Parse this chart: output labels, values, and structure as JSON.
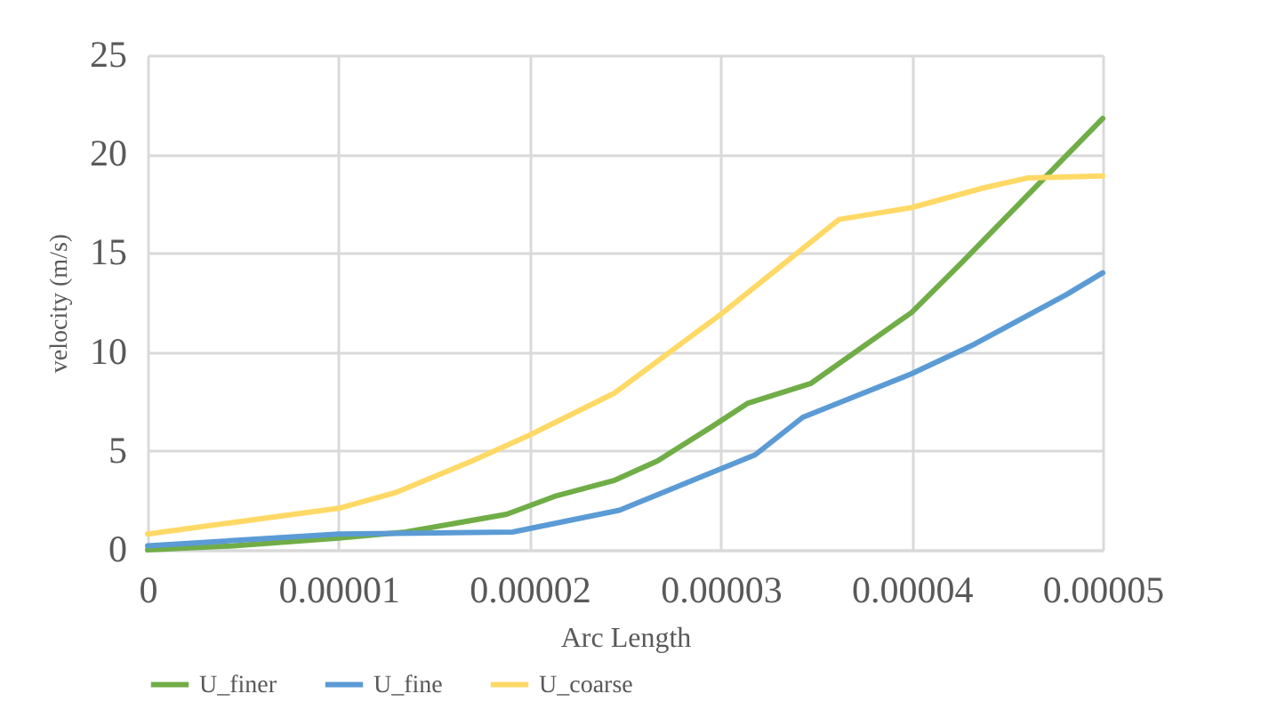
{
  "chart_data": {
    "type": "line",
    "xlabel": "Arc Length",
    "ylabel": "velocity (m/s)",
    "xlim": [
      0,
      5e-05
    ],
    "xticks": [
      0,
      {
        "value": 1e-05,
        "label": "0.00001"
      },
      {
        "value": 2e-05,
        "label": "0.00002"
      },
      {
        "value": 3e-05,
        "label": "0.00003"
      },
      {
        "value": 4e-05,
        "label": "0.00004"
      },
      {
        "value": 5e-05,
        "label": "0.00005"
      }
    ],
    "ylim": [
      0,
      25
    ],
    "yticks": [
      0,
      5,
      10,
      15,
      20,
      25
    ],
    "grid": true,
    "legend": "bottom",
    "line_style": "solid",
    "marker": "none",
    "series": [
      {
        "name": "U_finer",
        "color": "#70ad47",
        "x": [
          0,
          4.5e-06,
          1e-05,
          1.35e-05,
          1.88e-05,
          2.13e-05,
          2.44e-05,
          2.67e-05,
          2.95e-05,
          3.14e-05,
          3.47e-05,
          4e-05,
          4.26e-05,
          5e-05
        ],
        "values": [
          0,
          0.2,
          0.6,
          0.9,
          1.8,
          2.7,
          3.5,
          4.5,
          6.2,
          7.4,
          8.4,
          12,
          14.5,
          21.8
        ]
      },
      {
        "name": "U_fine",
        "color": "#5b9bd5",
        "x": [
          0,
          1e-05,
          1.91e-05,
          2.47e-05,
          3.18e-05,
          3.43e-05,
          4e-05,
          4.33e-05,
          4.81e-05,
          5e-05
        ],
        "values": [
          0.2,
          0.8,
          0.9,
          2.0,
          4.8,
          6.7,
          8.9,
          10.4,
          12.9,
          14
        ]
      },
      {
        "name": "U_coarse",
        "color": "#ffd966",
        "x": [
          0,
          1e-05,
          1.3e-05,
          1.7e-05,
          2e-05,
          2.44e-05,
          3e-05,
          3.62e-05,
          4e-05,
          4.38e-05,
          4.61e-05,
          5e-05
        ],
        "values": [
          0.8,
          2.1,
          2.9,
          4.5,
          5.8,
          7.9,
          11.9,
          16.7,
          17.3,
          18.3,
          18.8,
          18.9
        ]
      }
    ]
  }
}
